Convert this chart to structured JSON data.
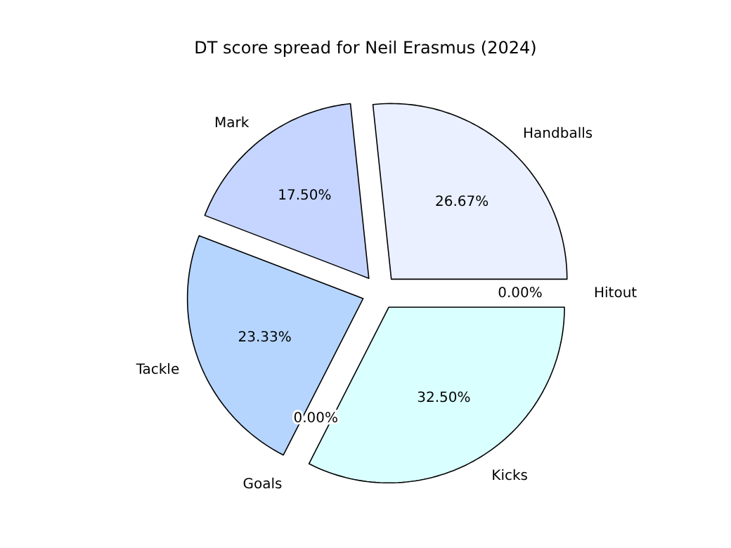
{
  "chart_data": {
    "type": "pie",
    "title": "DT score spread for Neil Erasmus (2024)",
    "categories": [
      "Handballs",
      "Mark",
      "Tackle",
      "Goals",
      "Kicks",
      "Hitout"
    ],
    "values": [
      26.67,
      17.5,
      23.33,
      0,
      32.5,
      0
    ],
    "colors": [
      "#eaf0ff",
      "#c5d5ff",
      "#b5d5ff",
      null,
      "#d9ffff",
      null
    ],
    "value_labels": [
      "26.67%",
      "17.50%",
      "23.33%",
      "0.00%",
      "32.50%",
      "0.00%"
    ]
  }
}
